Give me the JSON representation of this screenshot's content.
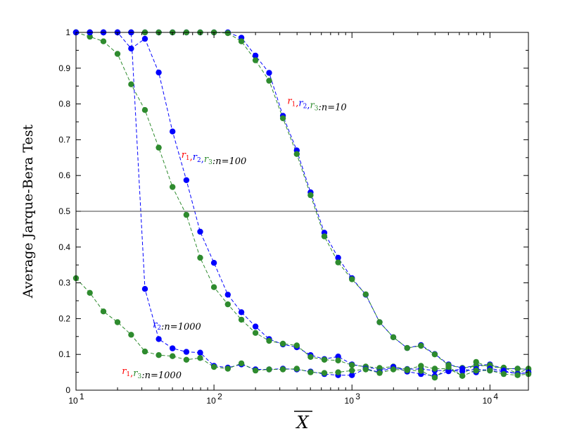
{
  "chart_data": {
    "type": "scatter",
    "title": "",
    "xlabel": "X",
    "ylabel": "Average Jarque-Bera Test",
    "xscale": "log",
    "xlim": [
      10,
      19000
    ],
    "ylim": [
      0,
      1
    ],
    "grid": false,
    "x_ticks": [
      {
        "value": 10,
        "base": "10",
        "exp": "1"
      },
      {
        "value": 100,
        "base": "10",
        "exp": "2"
      },
      {
        "value": 1000,
        "base": "10",
        "exp": "3"
      },
      {
        "value": 10000,
        "base": "10",
        "exp": "4"
      }
    ],
    "y_ticks": [
      "0",
      "0.1",
      "0.2",
      "0.3",
      "0.4",
      "0.5",
      "0.6",
      "0.7",
      "0.8",
      "0.9",
      "1"
    ],
    "reference_line": {
      "y": 0.5
    },
    "colors": {
      "r1": "#ff0000",
      "r2": "#0000ff",
      "r3": "#2e8b2e",
      "text": "#000000"
    },
    "series": [
      {
        "id": "blue-n10",
        "color": "#0000ff",
        "points": [
          [
            10,
            1
          ],
          [
            12.6,
            1
          ],
          [
            15.8,
            1
          ],
          [
            20,
            1
          ],
          [
            25.1,
            1
          ],
          [
            31.6,
            1
          ],
          [
            39.8,
            1
          ],
          [
            50.1,
            1
          ],
          [
            63.1,
            1
          ],
          [
            79.4,
            1
          ],
          [
            100,
            1
          ],
          [
            126,
            1
          ],
          [
            158,
            0.985
          ],
          [
            200,
            0.935
          ],
          [
            251,
            0.887
          ],
          [
            316,
            0.767
          ],
          [
            398,
            0.67
          ],
          [
            501,
            0.553
          ],
          [
            631,
            0.44
          ],
          [
            794,
            0.37
          ],
          [
            1000,
            0.313
          ],
          [
            1259,
            0.267
          ],
          [
            1585,
            0.19
          ],
          [
            1995,
            0.148
          ],
          [
            2512,
            0.118
          ],
          [
            3162,
            0.126
          ],
          [
            3981,
            0.101
          ],
          [
            5012,
            0.072
          ],
          [
            6310,
            0.062
          ],
          [
            7943,
            0.069
          ],
          [
            10000,
            0.072
          ],
          [
            12589,
            0.06
          ],
          [
            15849,
            0.06
          ],
          [
            19000,
            0.058
          ]
        ]
      },
      {
        "id": "green-n10",
        "color": "#2e8b2e",
        "points": [
          [
            10,
            1
          ],
          [
            12.6,
            1
          ],
          [
            15.8,
            1
          ],
          [
            20,
            1
          ],
          [
            25.1,
            1
          ],
          [
            31.6,
            1
          ],
          [
            39.8,
            1
          ],
          [
            50.1,
            1
          ],
          [
            63.1,
            1
          ],
          [
            79.4,
            1
          ],
          [
            100,
            1
          ],
          [
            126,
            0.998
          ],
          [
            158,
            0.975
          ],
          [
            200,
            0.922
          ],
          [
            251,
            0.865
          ],
          [
            316,
            0.76
          ],
          [
            398,
            0.66
          ],
          [
            501,
            0.545
          ],
          [
            631,
            0.43
          ],
          [
            794,
            0.357
          ],
          [
            1000,
            0.31
          ],
          [
            1259,
            0.268
          ],
          [
            1585,
            0.19
          ],
          [
            1995,
            0.148
          ],
          [
            2512,
            0.118
          ],
          [
            3162,
            0.124
          ],
          [
            3981,
            0.1
          ],
          [
            5012,
            0.07
          ],
          [
            6310,
            0.062
          ],
          [
            7943,
            0.067
          ],
          [
            10000,
            0.07
          ],
          [
            12589,
            0.06
          ],
          [
            15849,
            0.06
          ],
          [
            19000,
            0.058
          ]
        ]
      },
      {
        "id": "blue-n100",
        "color": "#0000ff",
        "points": [
          [
            10,
            1
          ],
          [
            12.6,
            1
          ],
          [
            15.8,
            1
          ],
          [
            20,
            1
          ],
          [
            25.1,
            0.955
          ],
          [
            31.6,
            0.982
          ],
          [
            39.8,
            0.888
          ],
          [
            50.1,
            0.723
          ],
          [
            63.1,
            0.587
          ],
          [
            79.4,
            0.443
          ],
          [
            100,
            0.356
          ],
          [
            126,
            0.267
          ],
          [
            158,
            0.218
          ],
          [
            200,
            0.178
          ],
          [
            251,
            0.143
          ],
          [
            316,
            0.128
          ],
          [
            398,
            0.12
          ],
          [
            501,
            0.098
          ],
          [
            631,
            0.087
          ],
          [
            794,
            0.094
          ],
          [
            1000,
            0.072
          ],
          [
            1259,
            0.065
          ],
          [
            1585,
            0.058
          ],
          [
            1995,
            0.062
          ],
          [
            2512,
            0.059
          ],
          [
            3162,
            0.059
          ],
          [
            3981,
            0.055
          ],
          [
            5012,
            0.055
          ],
          [
            6310,
            0.053
          ],
          [
            7943,
            0.059
          ],
          [
            10000,
            0.055
          ],
          [
            12589,
            0.051
          ],
          [
            15849,
            0.047
          ],
          [
            19000,
            0.048
          ]
        ]
      },
      {
        "id": "green-n100",
        "color": "#2e8b2e",
        "points": [
          [
            10,
            1
          ],
          [
            12.6,
            0.988
          ],
          [
            15.8,
            0.975
          ],
          [
            20,
            0.94
          ],
          [
            25.1,
            0.855
          ],
          [
            31.6,
            0.783
          ],
          [
            39.8,
            0.678
          ],
          [
            50.1,
            0.568
          ],
          [
            63.1,
            0.49
          ],
          [
            79.4,
            0.37
          ],
          [
            100,
            0.288
          ],
          [
            126,
            0.24
          ],
          [
            158,
            0.197
          ],
          [
            200,
            0.16
          ],
          [
            251,
            0.138
          ],
          [
            316,
            0.13
          ],
          [
            398,
            0.125
          ],
          [
            501,
            0.093
          ],
          [
            631,
            0.085
          ],
          [
            794,
            0.083
          ],
          [
            1000,
            0.07
          ],
          [
            1259,
            0.066
          ],
          [
            1585,
            0.062
          ],
          [
            1995,
            0.066
          ],
          [
            2512,
            0.058
          ],
          [
            3162,
            0.068
          ],
          [
            3981,
            0.06
          ],
          [
            5012,
            0.06
          ],
          [
            6310,
            0.04
          ],
          [
            7943,
            0.079
          ],
          [
            10000,
            0.064
          ],
          [
            12589,
            0.063
          ],
          [
            15849,
            0.047
          ],
          [
            19000,
            0.06
          ]
        ]
      },
      {
        "id": "blue-n1000",
        "color": "#0000ff",
        "points": [
          [
            10,
            1
          ],
          [
            12.6,
            1
          ],
          [
            15.8,
            1
          ],
          [
            20,
            1
          ],
          [
            25.1,
            1
          ],
          [
            31.6,
            0.283
          ],
          [
            39.8,
            0.143
          ],
          [
            50.1,
            0.117
          ],
          [
            63.1,
            0.107
          ],
          [
            79.4,
            0.105
          ],
          [
            100,
            0.068
          ],
          [
            126,
            0.063
          ],
          [
            158,
            0.072
          ],
          [
            200,
            0.058
          ],
          [
            251,
            0.058
          ],
          [
            316,
            0.06
          ],
          [
            398,
            0.058
          ],
          [
            501,
            0.052
          ],
          [
            631,
            0.045
          ],
          [
            794,
            0.042
          ],
          [
            1000,
            0.042
          ],
          [
            1259,
            0.06
          ],
          [
            1585,
            0.05
          ],
          [
            1995,
            0.065
          ],
          [
            2512,
            0.052
          ],
          [
            3162,
            0.045
          ],
          [
            3981,
            0.04
          ],
          [
            5012,
            0.053
          ],
          [
            6310,
            0.06
          ],
          [
            7943,
            0.05
          ],
          [
            10000,
            0.06
          ],
          [
            12589,
            0.055
          ],
          [
            15849,
            0.045
          ],
          [
            19000,
            0.05
          ]
        ]
      },
      {
        "id": "green-n1000",
        "color": "#2e8b2e",
        "points": [
          [
            10,
            0.313
          ],
          [
            12.6,
            0.272
          ],
          [
            15.8,
            0.22
          ],
          [
            20,
            0.19
          ],
          [
            25.1,
            0.155
          ],
          [
            31.6,
            0.108
          ],
          [
            39.8,
            0.098
          ],
          [
            50.1,
            0.095
          ],
          [
            63.1,
            0.085
          ],
          [
            79.4,
            0.09
          ],
          [
            100,
            0.065
          ],
          [
            126,
            0.06
          ],
          [
            158,
            0.075
          ],
          [
            200,
            0.055
          ],
          [
            251,
            0.058
          ],
          [
            316,
            0.058
          ],
          [
            398,
            0.06
          ],
          [
            501,
            0.05
          ],
          [
            631,
            0.048
          ],
          [
            794,
            0.05
          ],
          [
            1000,
            0.055
          ],
          [
            1259,
            0.058
          ],
          [
            1585,
            0.048
          ],
          [
            1995,
            0.058
          ],
          [
            2512,
            0.056
          ],
          [
            3162,
            0.054
          ],
          [
            3981,
            0.035
          ],
          [
            5012,
            0.065
          ],
          [
            6310,
            0.04
          ],
          [
            7943,
            0.055
          ],
          [
            10000,
            0.055
          ],
          [
            12589,
            0.045
          ],
          [
            15849,
            0.042
          ],
          [
            19000,
            0.045
          ]
        ]
      }
    ],
    "annotations": [
      {
        "id": "n10",
        "x": 340,
        "y": 0.8,
        "parts": [
          {
            "kind": "r",
            "sub": "1",
            "color": "#ff0000"
          },
          {
            "kind": "sep",
            "text": ",",
            "color": "#ff0000"
          },
          {
            "kind": "r",
            "sub": "2",
            "color": "#0000ff"
          },
          {
            "kind": "sep",
            "text": ",",
            "color": "#0000ff"
          },
          {
            "kind": "r",
            "sub": "3",
            "color": "#2e8b2e"
          },
          {
            "kind": "txt",
            "text": ":n=10",
            "color": "#000000"
          }
        ]
      },
      {
        "id": "n100",
        "x": 58,
        "y": 0.65,
        "parts": [
          {
            "kind": "r",
            "sub": "1",
            "color": "#ff0000"
          },
          {
            "kind": "sep",
            "text": ",",
            "color": "#ff0000"
          },
          {
            "kind": "r",
            "sub": "2",
            "color": "#0000ff"
          },
          {
            "kind": "sep",
            "text": ",",
            "color": "#0000ff"
          },
          {
            "kind": "r",
            "sub": "3",
            "color": "#2e8b2e"
          },
          {
            "kind": "txt",
            "text": ":n=100",
            "color": "#000000"
          }
        ]
      },
      {
        "id": "n1000-r2",
        "x": 36,
        "y": 0.175,
        "parts": [
          {
            "kind": "r",
            "sub": "2",
            "color": "#0000ff"
          },
          {
            "kind": "txt",
            "text": ":n=1000",
            "color": "#000000"
          }
        ]
      },
      {
        "id": "n1000-r1r3",
        "x": 21.5,
        "y": 0.045,
        "parts": [
          {
            "kind": "r",
            "sub": "1",
            "color": "#ff0000"
          },
          {
            "kind": "sep",
            "text": ",",
            "color": "#ff0000"
          },
          {
            "kind": "r",
            "sub": "3",
            "color": "#2e8b2e"
          },
          {
            "kind": "txt",
            "text": ":n=1000",
            "color": "#000000"
          }
        ]
      }
    ]
  }
}
